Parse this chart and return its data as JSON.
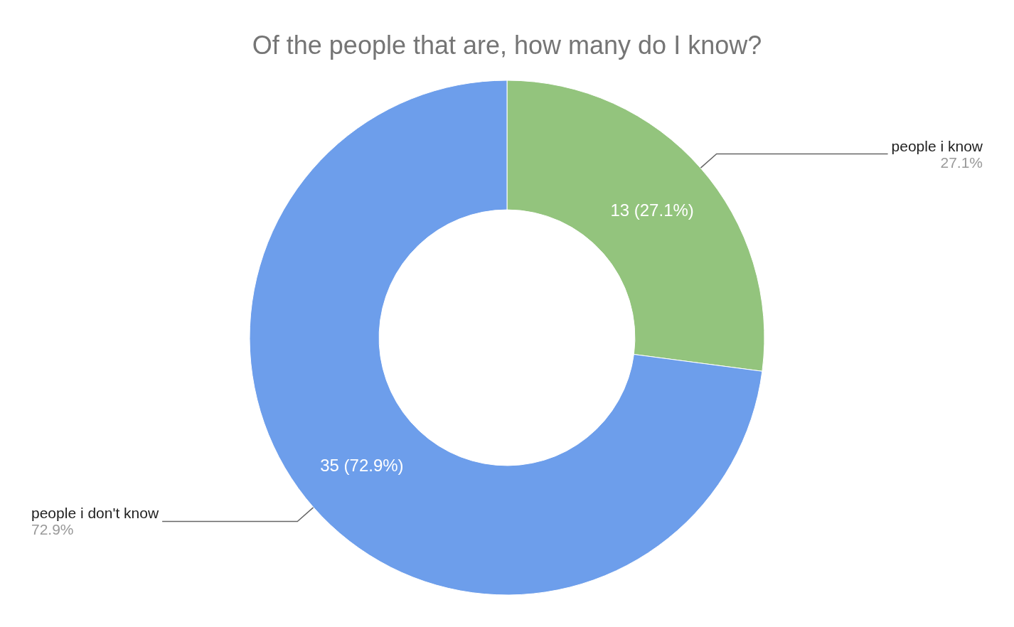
{
  "chart_data": {
    "type": "donut",
    "title": "Of the people that are, how many do I know?",
    "categories": [
      "people i know",
      "people i don't know"
    ],
    "values": [
      13,
      35
    ],
    "colors": [
      "#93c47d",
      "#6d9eeb"
    ],
    "value_labels": [
      "13 (27.1%)",
      "35 (72.9%)"
    ],
    "annotations": [
      "27.1%",
      "72.9%"
    ],
    "legend": false
  }
}
